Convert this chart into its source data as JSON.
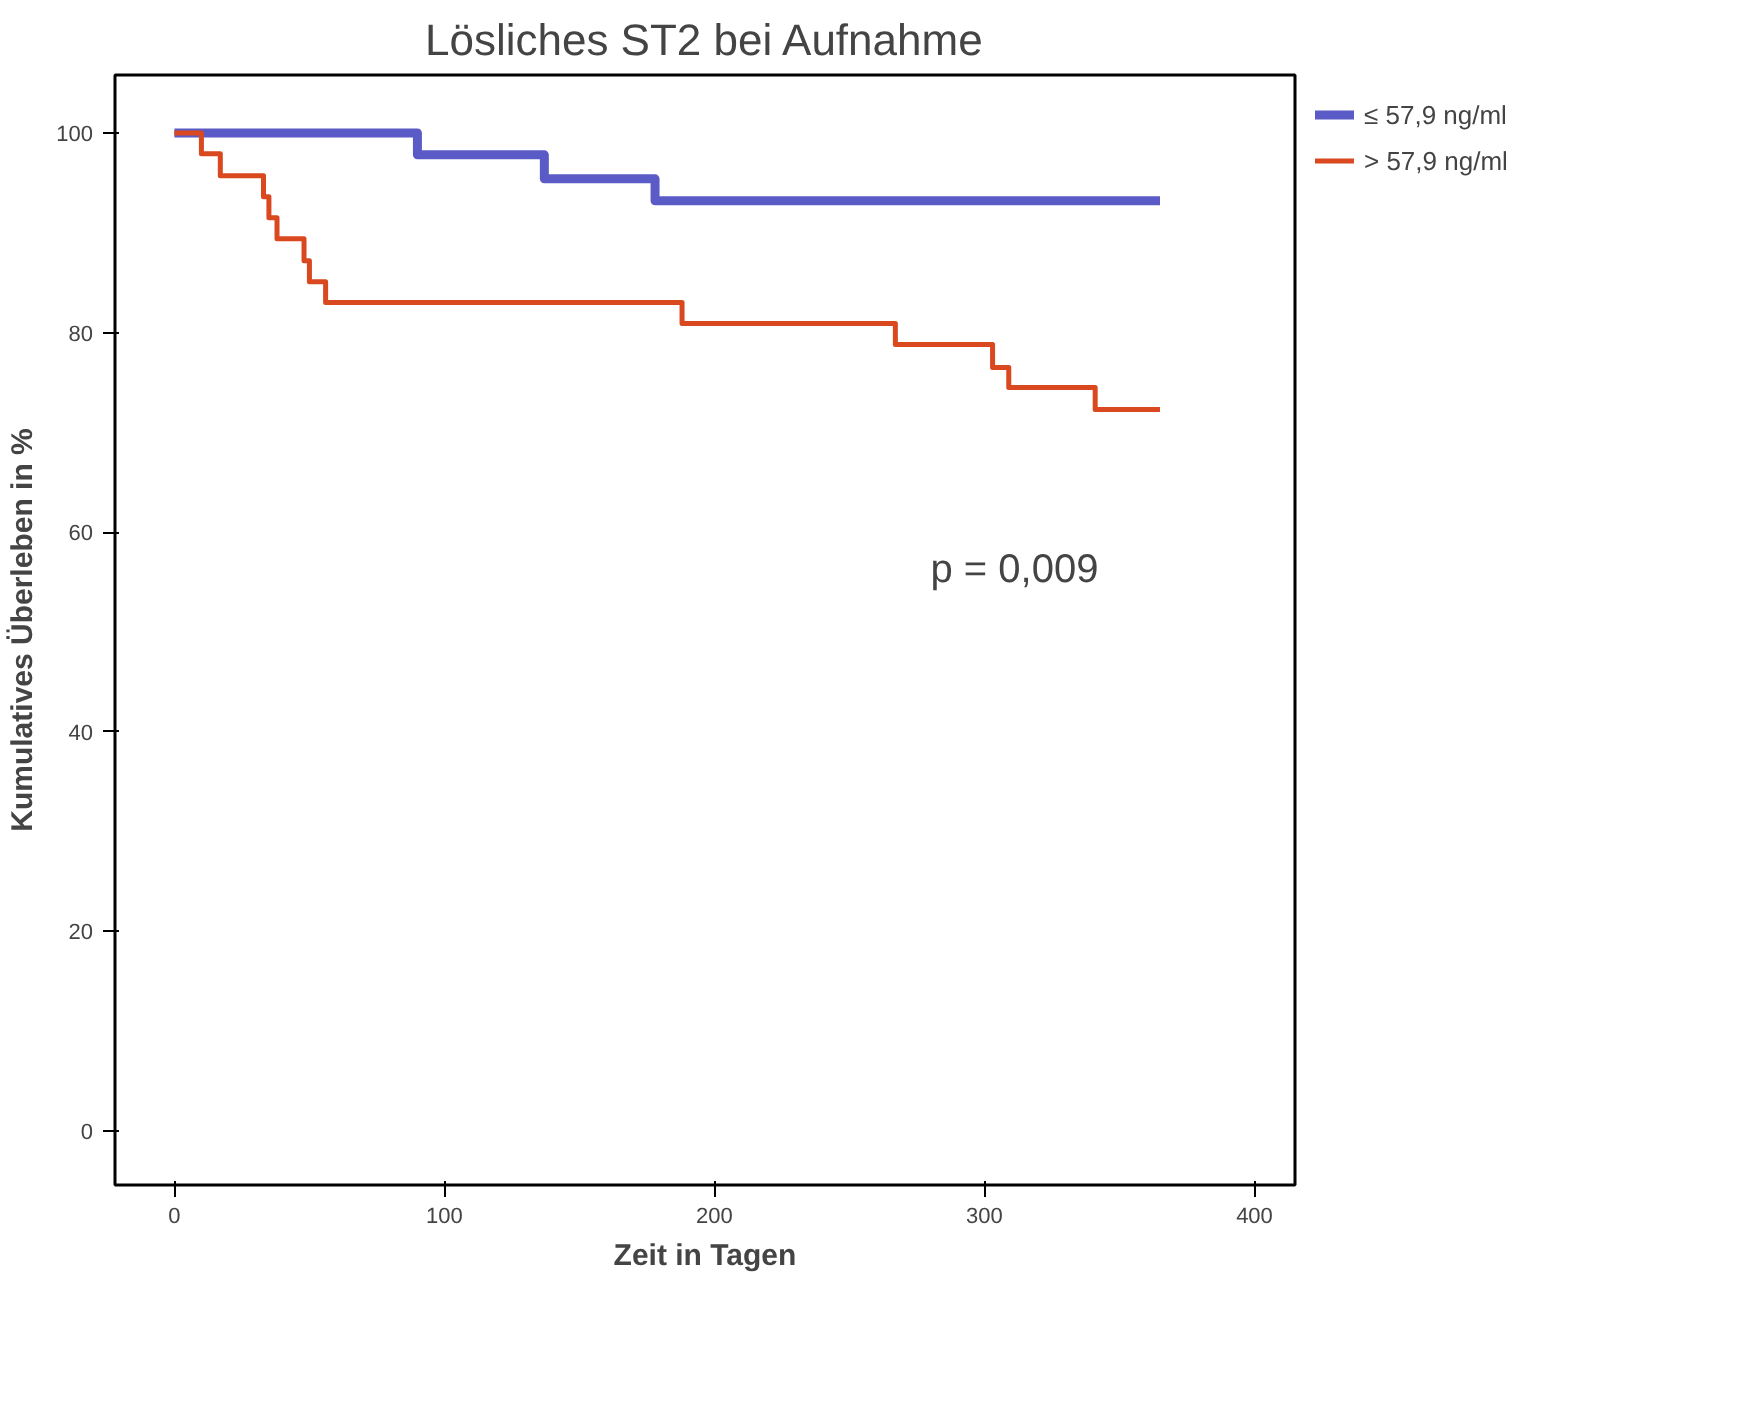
{
  "chart_data": {
    "type": "step",
    "title": "Lösliches ST2 bei Aufnahme",
    "xlabel": "Zeit in Tagen",
    "ylabel": "Kumulatives Überleben in %",
    "xlim": [
      -22,
      415
    ],
    "ylim": [
      -5.4,
      105.8
    ],
    "xticks": [
      0,
      100,
      200,
      300,
      400
    ],
    "yticks": [
      0,
      20,
      40,
      60,
      80,
      100
    ],
    "grid": false,
    "legend": "top right",
    "series": [
      {
        "name": "≤ 57,9 ng/ml",
        "color": "#5b5bc8",
        "x": [
          0,
          90,
          137,
          178,
          365
        ],
        "values": [
          100,
          97.8,
          95.4,
          93.2,
          93.2
        ]
      },
      {
        "name": "> 57,9 ng/ml",
        "color": "#d9481e",
        "x": [
          0,
          10,
          17,
          33,
          35,
          38,
          48,
          50,
          56,
          188,
          267,
          303,
          309,
          341,
          365
        ],
        "values": [
          100,
          97.9,
          95.7,
          93.6,
          91.5,
          89.4,
          87.2,
          85.1,
          83.0,
          80.9,
          78.8,
          76.5,
          74.5,
          72.3,
          72.3
        ]
      }
    ],
    "annotations": [
      "p = 0,009"
    ]
  }
}
